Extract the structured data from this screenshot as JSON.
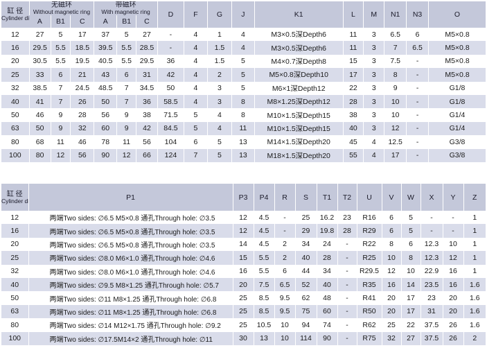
{
  "table1": {
    "header": {
      "cyl_cn": "缸 径",
      "cyl_en": "Cylinder dia",
      "nomag_cn": "无磁环",
      "nomag_en": "Without magnetic ring",
      "mag_cn": "带磁环",
      "mag_en": "With magnetic ring",
      "sub": [
        "A",
        "B1",
        "C",
        "A",
        "B1",
        "C"
      ],
      "cols": [
        "D",
        "F",
        "G",
        "J",
        "K1",
        "L",
        "M",
        "N1",
        "N3",
        "O"
      ]
    },
    "rows": [
      [
        "12",
        "27",
        "5",
        "17",
        "37",
        "5",
        "27",
        "-",
        "4",
        "1",
        "4",
        "M3×0.5深Depth6",
        "11",
        "3",
        "6.5",
        "6",
        "M5×0.8"
      ],
      [
        "16",
        "29.5",
        "5.5",
        "18.5",
        "39.5",
        "5.5",
        "28.5",
        "-",
        "4",
        "1.5",
        "4",
        "M3×0.5深Depth6",
        "11",
        "3",
        "7",
        "6.5",
        "M5×0.8"
      ],
      [
        "20",
        "30.5",
        "5.5",
        "19.5",
        "40.5",
        "5.5",
        "29.5",
        "36",
        "4",
        "1.5",
        "5",
        "M4×0.7深Depth8",
        "15",
        "3",
        "7.5",
        "-",
        "M5×0.8"
      ],
      [
        "25",
        "33",
        "6",
        "21",
        "43",
        "6",
        "31",
        "42",
        "4",
        "2",
        "5",
        "M5×0.8深Depth10",
        "17",
        "3",
        "8",
        "-",
        "M5×0.8"
      ],
      [
        "32",
        "38.5",
        "7",
        "24.5",
        "48.5",
        "7",
        "34.5",
        "50",
        "4",
        "3",
        "5",
        "M6×1深Depth12",
        "22",
        "3",
        "9",
        "-",
        "G1/8"
      ],
      [
        "40",
        "41",
        "7",
        "26",
        "50",
        "7",
        "36",
        "58.5",
        "4",
        "3",
        "8",
        "M8×1.25深Depth12",
        "28",
        "3",
        "10",
        "-",
        "G1/8"
      ],
      [
        "50",
        "46",
        "9",
        "28",
        "56",
        "9",
        "38",
        "71.5",
        "5",
        "4",
        "8",
        "M10×1.5深Depth15",
        "38",
        "3",
        "10",
        "-",
        "G1/4"
      ],
      [
        "63",
        "50",
        "9",
        "32",
        "60",
        "9",
        "42",
        "84.5",
        "5",
        "4",
        "11",
        "M10×1.5深Depth15",
        "40",
        "3",
        "12",
        "-",
        "G1/4"
      ],
      [
        "80",
        "68",
        "11",
        "46",
        "78",
        "11",
        "56",
        "104",
        "6",
        "5",
        "13",
        "M14×1.5深Depth20",
        "45",
        "4",
        "12.5",
        "-",
        "G3/8"
      ],
      [
        "100",
        "80",
        "12",
        "56",
        "90",
        "12",
        "66",
        "124",
        "7",
        "5",
        "13",
        "M18×1.5深Depth20",
        "55",
        "4",
        "17",
        "-",
        "G3/8"
      ]
    ]
  },
  "table2": {
    "header": {
      "cyl_cn": "缸 径",
      "cyl_en": "Cylinder dia",
      "cols": [
        "P1",
        "P3",
        "P4",
        "R",
        "S",
        "T1",
        "T2",
        "U",
        "V",
        "W",
        "X",
        "Y",
        "Z"
      ]
    },
    "rows": [
      [
        "12",
        "两端Two sides: ∅6.5 M5×0.8 通孔Through hole: ∅3.5",
        "12",
        "4.5",
        "-",
        "25",
        "16.2",
        "23",
        "R16",
        "6",
        "5",
        "-",
        "-",
        "1"
      ],
      [
        "16",
        "两端Two sides: ∅6.5 M5×0.8 通孔Through hole: ∅3.5",
        "12",
        "4.5",
        "-",
        "29",
        "19.8",
        "28",
        "R29",
        "6",
        "5",
        "-",
        "-",
        "1"
      ],
      [
        "20",
        "两端Two sides: ∅6.5 M5×0.8 通孔Through hole: ∅3.5",
        "14",
        "4.5",
        "2",
        "34",
        "24",
        "-",
        "R22",
        "8",
        "6",
        "12.3",
        "10",
        "1"
      ],
      [
        "25",
        "两端Two sides: ∅8.0 M6×1.0 通孔Through hole: ∅4.6",
        "15",
        "5.5",
        "2",
        "40",
        "28",
        "-",
        "R25",
        "10",
        "8",
        "12.3",
        "12",
        "1"
      ],
      [
        "32",
        "两端Two sides: ∅8.0 M6×1.0 通孔Through hole: ∅4.6",
        "16",
        "5.5",
        "6",
        "44",
        "34",
        "-",
        "R29.5",
        "12",
        "10",
        "22.9",
        "16",
        "1"
      ],
      [
        "40",
        "两端Two sides: ∅9.5 M8×1.25 通孔Through hole: ∅5.7",
        "20",
        "7.5",
        "6.5",
        "52",
        "40",
        "-",
        "R35",
        "16",
        "14",
        "23.5",
        "16",
        "1.6"
      ],
      [
        "50",
        "两端Two sides: ∅11 M8×1.25 通孔Through hole: ∅6.8",
        "25",
        "8.5",
        "9.5",
        "62",
        "48",
        "-",
        "R41",
        "20",
        "17",
        "23",
        "20",
        "1.6"
      ],
      [
        "63",
        "两端Two sides: ∅11 M8×1.25 通孔Through hole: ∅6.8",
        "25",
        "8.5",
        "9.5",
        "75",
        "60",
        "-",
        "R50",
        "20",
        "17",
        "31",
        "20",
        "1.6"
      ],
      [
        "80",
        "两端Two sides: ∅14 M12×1.75 通孔Through hole: ∅9.2",
        "25",
        "10.5",
        "10",
        "94",
        "74",
        "-",
        "R62",
        "25",
        "22",
        "37.5",
        "26",
        "1.6"
      ],
      [
        "100",
        "两端Two sides: ∅17.5M14×2 通孔Through hole: ∅11",
        "30",
        "13",
        "10",
        "114",
        "90",
        "-",
        "R75",
        "32",
        "27",
        "37.5",
        "26",
        "2"
      ]
    ]
  }
}
